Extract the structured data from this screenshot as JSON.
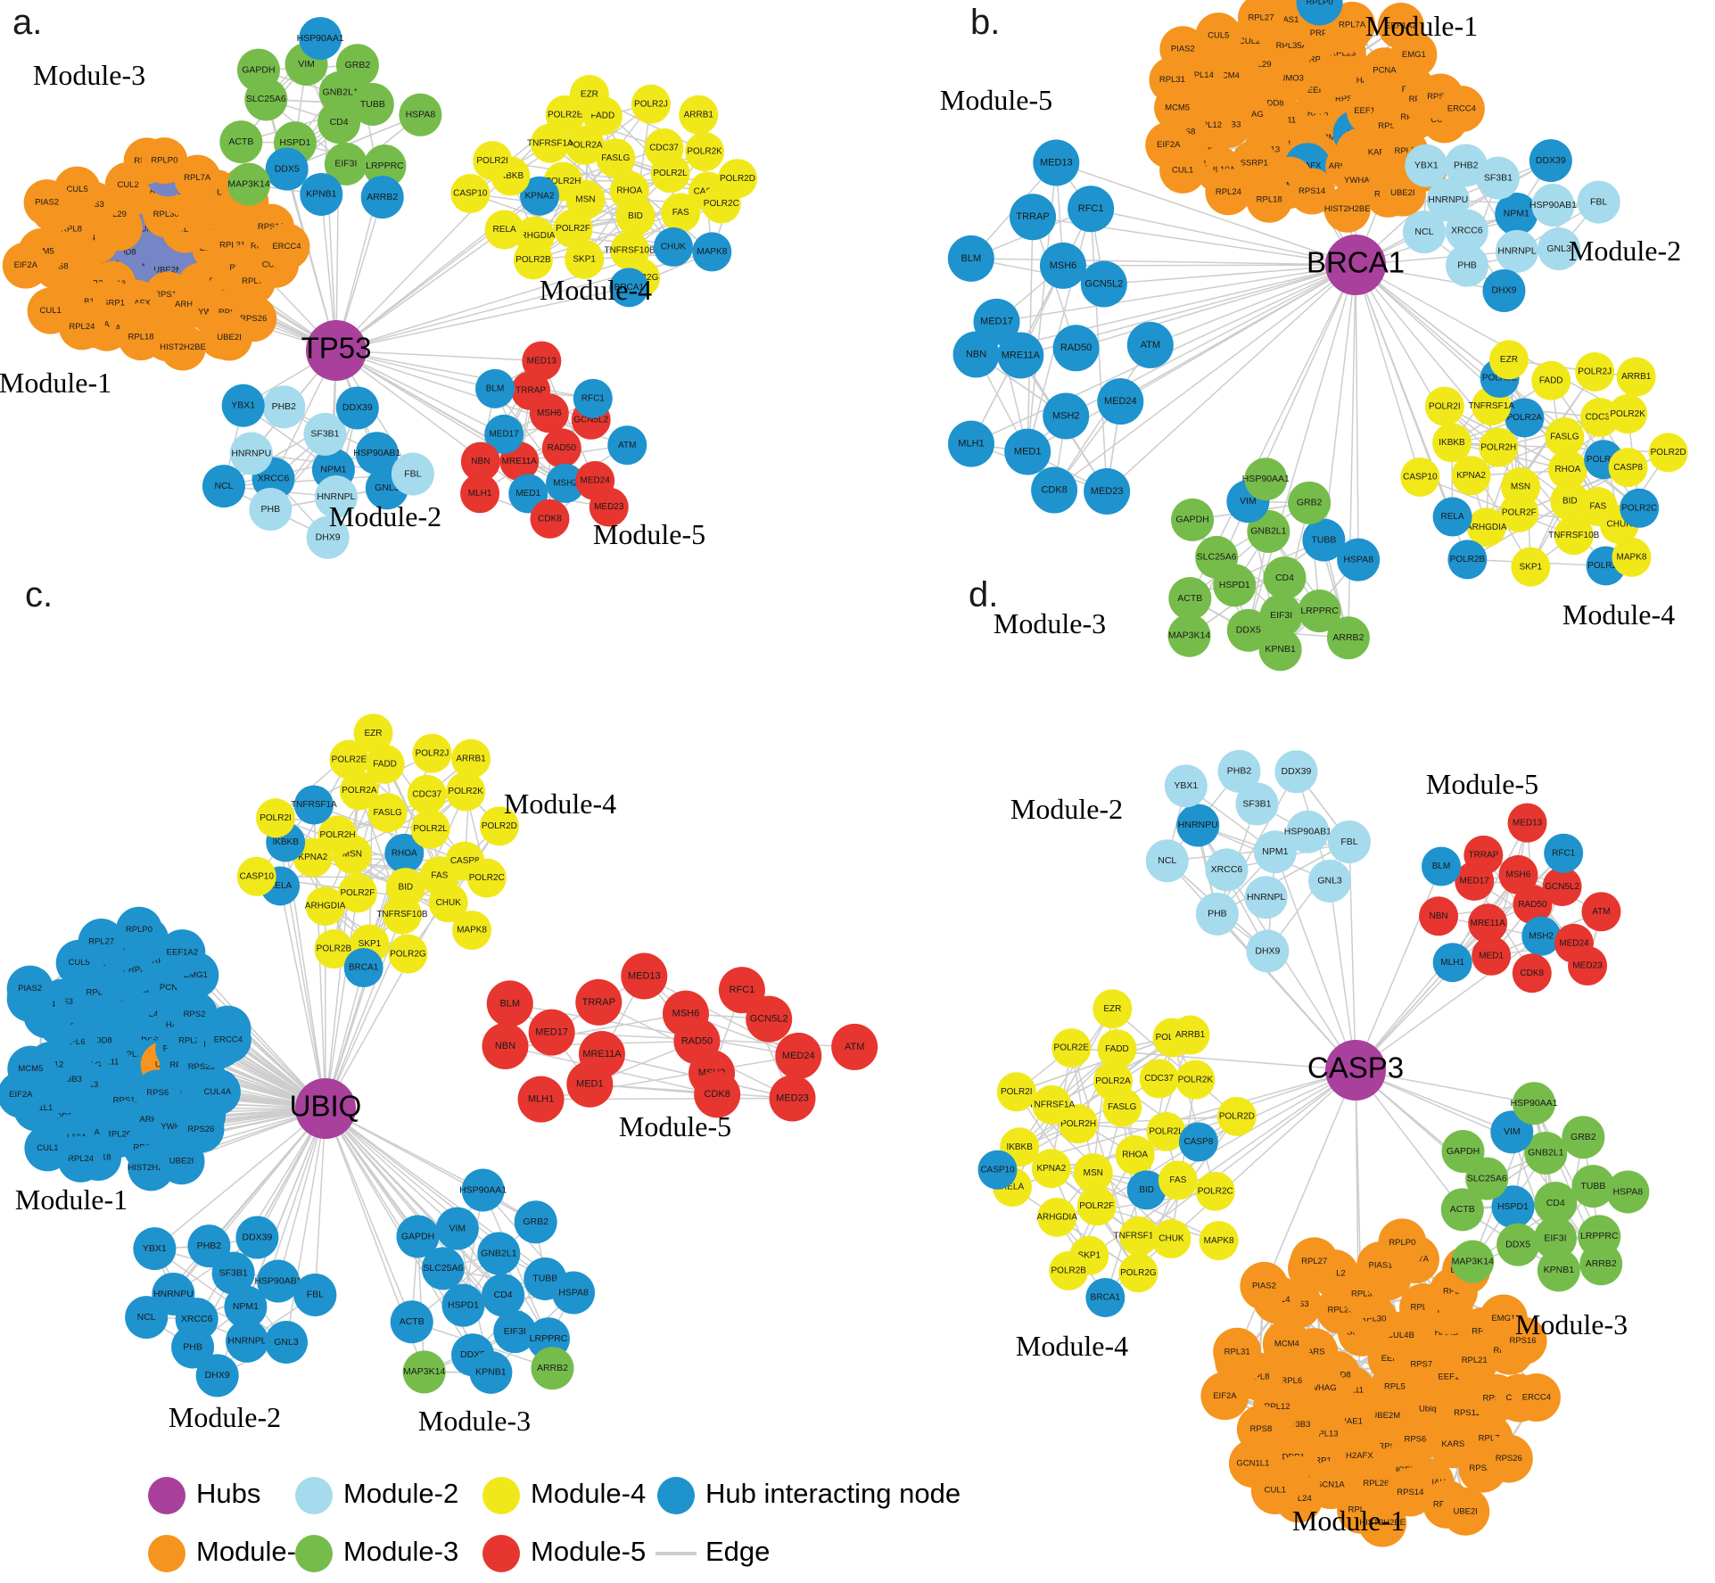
{
  "figure": {
    "type": "protein-interaction-network",
    "panel_count": 4
  },
  "colors": {
    "hub": "#A8409C",
    "module1": "#F5941F",
    "module2": "#A5DBEC",
    "module3": "#76BC4B",
    "module4": "#F1E81A",
    "module5": "#E6362F",
    "hub_interacting": "#1E93CE",
    "hub_interacting_muted": "#7585C5",
    "edge": "#CDCDCD",
    "background": "#FFFFFF",
    "text": "#000000"
  },
  "module_palette": {
    "Module-1": "module1",
    "Module-2": "module2",
    "Module-3": "module3",
    "Module-4": "module4",
    "Module-5": "module5"
  },
  "gene_sets": {
    "Module-1": [
      "RPL5",
      "RPL11",
      "EEF2",
      "UBE2M",
      "NEDD8",
      "RPS7",
      "NAE1",
      "SUMO3",
      "Ubiq",
      "YWHAG",
      "CUL4B",
      "RPS13",
      "TARS",
      "EEF1A1",
      "RPL13",
      "RPL30",
      "RPS6",
      "RPL6",
      "HARS",
      "H2AFX",
      "RPL29",
      "RPS11",
      "SF3B3",
      "RPL23",
      "ARHGEF4",
      "MCM4",
      "RPL21",
      "SSRP1",
      "RPL35A",
      "KARS",
      "RPL12",
      "PCNA",
      "RPL26",
      "RPS3",
      "RPS23",
      "DDB1",
      "PRPF3",
      "YWHAH",
      "RPL8",
      "RPS2",
      "SCN1A",
      "CUL2",
      "RPL7",
      "RPS8",
      "RPL9",
      "RPS14",
      "RPL14",
      "RPS15A",
      "RPL10A",
      "PIAS1",
      "RPS20",
      "MCM5",
      "EMG1",
      "RPL18",
      "CUL5",
      "CUL4A",
      "GCN1L1",
      "RPL7A",
      "RPS4X",
      "RPL31",
      "RPS16",
      "RPL24",
      "RPL27",
      "RPS26",
      "EIF2A",
      "EEF1A2",
      "HIST2H2BE",
      "PIAS2",
      "ERCC4",
      "CUL1",
      "RPLP0",
      "UBE2I"
    ],
    "Module-2": [
      "NPM1",
      "XRCC6",
      "SF3B1",
      "HNRNPL",
      "HNRNPU",
      "HSP90AB1",
      "PHB",
      "PHB2",
      "GNL3",
      "NCL",
      "DDX39",
      "DHX9",
      "YBX1",
      "FBL"
    ],
    "Module-3": [
      "CD4",
      "HSPD1",
      "GNB2L1",
      "EIF3I",
      "SLC25A6",
      "TUBB",
      "DDX5",
      "VIM",
      "LRPPRC",
      "ACTB",
      "GRB2",
      "KPNB1",
      "GAPDH",
      "HSPA8",
      "MAP3K14",
      "HSP90AA1",
      "ARRB2"
    ],
    "Module-4": [
      "RHOA",
      "MSN",
      "FASLG",
      "BID",
      "POLR2H",
      "POLR2L",
      "POLR2F",
      "POLR2A",
      "FAS",
      "KPNA2",
      "CDC37",
      "TNFRSF10B",
      "TNFRSF1A",
      "CASP8",
      "ARHGDIA",
      "FADD",
      "CHUK",
      "IKBKB",
      "POLR2K",
      "SKP1",
      "POLR2E",
      "POLR2C",
      "RELA",
      "POLR2J",
      "POLR2G",
      "POLR2I",
      "POLR2D",
      "POLR2B",
      "EZR",
      "MAPK8",
      "CASP10",
      "ARRB1",
      "BRCA1"
    ],
    "Module-5": [
      "RAD50",
      "MRE11A",
      "MSH6",
      "MSH2",
      "MED17",
      "GCN5L2",
      "MED1",
      "TRRAP",
      "MED24",
      "NBN",
      "RFC1",
      "CDK8",
      "BLM",
      "ATM",
      "MLH1",
      "MED13",
      "MED23"
    ]
  },
  "panels": [
    {
      "letter": "a.",
      "hub": "TP53",
      "modules": [
        {
          "name": "Module-1",
          "set": "Module-1",
          "blue_key": "hub_interacting_muted",
          "hub_interacting": [
            "RPL5",
            "RPL11",
            "EEF2",
            "UBE2M",
            "NEDD8",
            "RPS7",
            "NAE1",
            "SUMO3",
            "Ubiq",
            "YWHAG",
            "PIAS1"
          ]
        },
        {
          "name": "Module-2",
          "set": "Module-2",
          "hub_interacting": [
            "XRCC6",
            "NPM1",
            "HSP90AB1",
            "GNL3",
            "NCL",
            "DDX39",
            "YBX1"
          ]
        },
        {
          "name": "Module-3",
          "set": "Module-3",
          "hub_interacting": [
            "DDX5",
            "KPNB1",
            "HSP90AA1",
            "ARRB2"
          ]
        },
        {
          "name": "Module-4",
          "set": "Module-4",
          "hub_interacting": [
            "KPNA2",
            "CHUK",
            "MAPK8",
            "BRCA1"
          ]
        },
        {
          "name": "Module-5",
          "set": "Module-5",
          "hub_interacting": [
            "MSH2",
            "MED17",
            "MED1",
            "RFC1",
            "BLM",
            "ATM"
          ]
        }
      ]
    },
    {
      "letter": "b.",
      "hub": "BRCA1",
      "modules": [
        {
          "name": "Module-1",
          "set": "Module-1",
          "hub_interacting": [
            "H2AFX",
            "Ubiq",
            "RPLP0"
          ]
        },
        {
          "name": "Module-2",
          "set": "Module-2",
          "hub_interacting": [
            "NPM1",
            "DHX9",
            "DDX39"
          ]
        },
        {
          "name": "Module-3",
          "set": "Module-3",
          "hub_interacting": [
            "TUBB",
            "HSPA8",
            "VIM"
          ]
        },
        {
          "name": "Module-4",
          "set": "Module-4",
          "exclude": [
            "BRCA1"
          ],
          "hub_interacting": [
            "POLR2A",
            "POLR2B",
            "POLR2C",
            "POLR2L",
            "POLR2E",
            "POLR2G",
            "RELA"
          ]
        },
        {
          "name": "Module-5",
          "set": "Module-5",
          "hub_interacting": "*"
        }
      ]
    },
    {
      "letter": "c.",
      "hub": "UBIQ",
      "modules": [
        {
          "name": "Module-1",
          "set": "Module-1",
          "hub_interacting": "*",
          "module_colored": [
            "Ubiq"
          ]
        },
        {
          "name": "Module-2",
          "set": "Module-2",
          "hub_interacting": "*"
        },
        {
          "name": "Module-3",
          "set": "Module-3",
          "hub_interacting": "*",
          "module_colored": [
            "ARRB2",
            "MAP3K14"
          ]
        },
        {
          "name": "Module-4",
          "set": "Module-4",
          "hub_interacting": [
            "BRCA1",
            "IKBKB",
            "RELA",
            "TNFRSF1A",
            "RHOA"
          ]
        },
        {
          "name": "Module-5",
          "set": "Module-5",
          "hub_interacting": []
        }
      ]
    },
    {
      "letter": "d.",
      "hub": "CASP3",
      "modules": [
        {
          "name": "Module-1",
          "set": "Module-1",
          "hub_interacting": []
        },
        {
          "name": "Module-2",
          "set": "Module-2",
          "hub_interacting": [
            "HNRNPU"
          ]
        },
        {
          "name": "Module-3",
          "set": "Module-3",
          "hub_interacting": [
            "VIM",
            "HSPD1"
          ]
        },
        {
          "name": "Module-4",
          "set": "Module-4",
          "hub_interacting": [
            "BRCA1",
            "CASP10",
            "CASP8",
            "BID"
          ]
        },
        {
          "name": "Module-5",
          "set": "Module-5",
          "hub_interacting": [
            "RFC1",
            "MLH1",
            "BLM",
            "MSH2"
          ]
        }
      ]
    }
  ],
  "legend": {
    "items": [
      {
        "label": "Hubs",
        "color": "hub",
        "type": "circle"
      },
      {
        "label": "Module-2",
        "color": "module2",
        "type": "circle"
      },
      {
        "label": "Module-4",
        "color": "module4",
        "type": "circle"
      },
      {
        "label": "Hub interacting node",
        "color": "hub_interacting",
        "type": "circle"
      },
      {
        "label": "Module-1",
        "color": "module1",
        "type": "circle"
      },
      {
        "label": "Module-3",
        "color": "module3",
        "type": "circle"
      },
      {
        "label": "Module-5",
        "color": "module5",
        "type": "circle"
      },
      {
        "label": "Edge",
        "color": "edge",
        "type": "line"
      }
    ]
  }
}
